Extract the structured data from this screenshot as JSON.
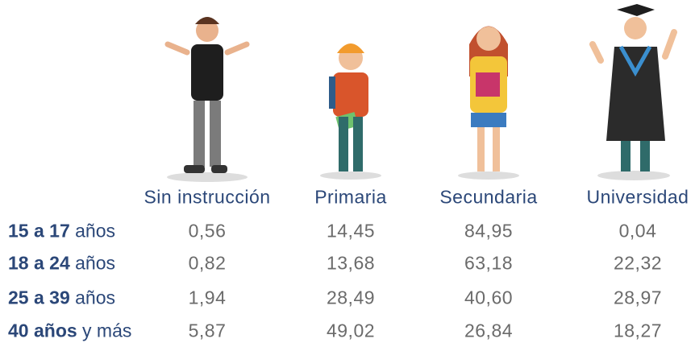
{
  "table": {
    "columns": [
      "Sin instrucción",
      "Primaria",
      "Secundaria",
      "Universidad"
    ],
    "rows": [
      {
        "label_bold": "15 a 17",
        "label_rest": "años",
        "cells": [
          "0,56",
          "14,45",
          "84,95",
          "0,04"
        ]
      },
      {
        "label_bold": "18 a 24",
        "label_rest": "años",
        "cells": [
          "0,82",
          "13,68",
          "63,18",
          "22,32"
        ]
      },
      {
        "label_bold": "25 a 39",
        "label_rest": "años",
        "cells": [
          "1,94",
          "28,49",
          "40,60",
          "28,97"
        ]
      },
      {
        "label_bold": "40 años",
        "label_rest": "y más",
        "cells": [
          "5,87",
          "49,02",
          "26,84",
          "18,27"
        ]
      }
    ]
  }
}
